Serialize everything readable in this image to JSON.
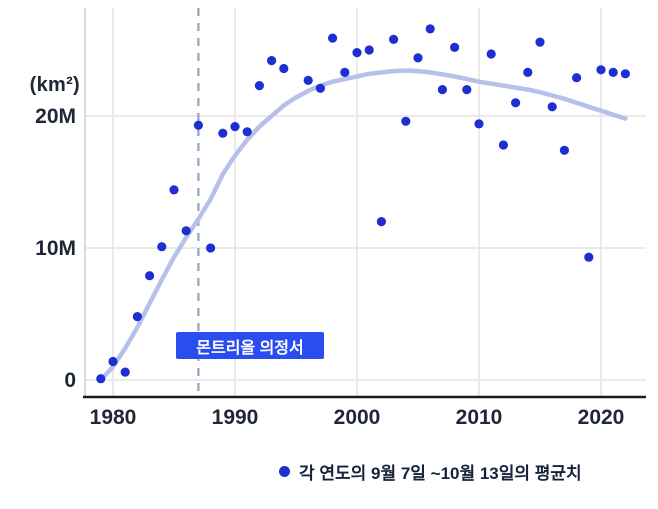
{
  "figure": {
    "ylabel": "(km²)",
    "annotation": "몬트리올 의정서",
    "legend": "각 연도의 9월 7일 ~10월 13일의 평균치"
  },
  "colors": {
    "dot": "#1e2fd2",
    "trend": "#b7c0ea",
    "dashed_line": "#93a0bf",
    "badge_bg": "#2a4df0",
    "badge_text": "#ffffff",
    "grid": "#e4e4e4",
    "axis": "#1c1c1c",
    "axis_secondary": "#cfcfcf",
    "text": "#1f2638"
  },
  "chart_data": {
    "type": "scatter",
    "title": "",
    "xlabel": "",
    "ylabel": "(km²)",
    "x_ticks": [
      1980,
      1990,
      2000,
      2010,
      2020
    ],
    "y_ticks": [
      {
        "label": "0",
        "value": 0
      },
      {
        "label": "10M",
        "value": 10
      },
      {
        "label": "20M",
        "value": 20
      }
    ],
    "x_range": [
      1978.5,
      2023.5
    ],
    "y_range_million_km2": [
      0,
      28
    ],
    "grid": true,
    "annotation": {
      "label": "몬트리올 의정서",
      "x": 1987,
      "style": "dashed-vertical-line"
    },
    "legend_position": "bottom",
    "legend": "각 연도의 9월 7일 ~10월 13일의 평균치",
    "series": [
      {
        "name": "yearly-average-sep7-oct13",
        "type": "scatter",
        "x": [
          1979,
          1980,
          1981,
          1982,
          1983,
          1984,
          1985,
          1986,
          1987,
          1988,
          1989,
          1990,
          1991,
          1992,
          1993,
          1994,
          1996,
          1997,
          1998,
          1999,
          2000,
          2001,
          2002,
          2003,
          2004,
          2005,
          2006,
          2007,
          2008,
          2009,
          2010,
          2011,
          2012,
          2013,
          2014,
          2015,
          2016,
          2017,
          2018,
          2019,
          2020,
          2021,
          2022
        ],
        "y": [
          0.1,
          1.4,
          0.6,
          4.8,
          7.9,
          10.1,
          14.4,
          11.3,
          19.3,
          10.0,
          18.7,
          19.2,
          18.8,
          22.3,
          24.2,
          23.6,
          22.7,
          22.1,
          25.9,
          23.3,
          24.8,
          25.0,
          12.0,
          25.8,
          19.6,
          24.4,
          26.6,
          22.0,
          25.2,
          22.0,
          19.4,
          24.7,
          17.8,
          21.0,
          23.3,
          25.6,
          20.7,
          17.4,
          22.9,
          9.3,
          23.5,
          23.3,
          23.2
        ]
      },
      {
        "name": "smoothed-trend",
        "type": "line",
        "x": [
          1979,
          1980,
          1981,
          1982,
          1983,
          1984,
          1985,
          1986,
          1987,
          1988,
          1989,
          1990,
          1991,
          1992,
          1993,
          1994,
          1995,
          1996,
          1997,
          1998,
          1999,
          2000,
          2001,
          2002,
          2003,
          2004,
          2005,
          2006,
          2007,
          2008,
          2009,
          2010,
          2011,
          2012,
          2013,
          2014,
          2015,
          2016,
          2017,
          2018,
          2019,
          2020,
          2021,
          2022
        ],
        "y": [
          0.0,
          1.0,
          2.4,
          4.0,
          5.8,
          7.6,
          9.3,
          10.8,
          12.2,
          13.7,
          15.6,
          17.0,
          18.2,
          19.2,
          20.0,
          20.8,
          21.4,
          21.9,
          22.3,
          22.6,
          22.8,
          23.0,
          23.2,
          23.3,
          23.4,
          23.45,
          23.4,
          23.3,
          23.15,
          23.0,
          22.8,
          22.6,
          22.45,
          22.3,
          22.15,
          22.0,
          21.8,
          21.55,
          21.3,
          21.0,
          20.7,
          20.4,
          20.1,
          19.8
        ]
      }
    ]
  }
}
